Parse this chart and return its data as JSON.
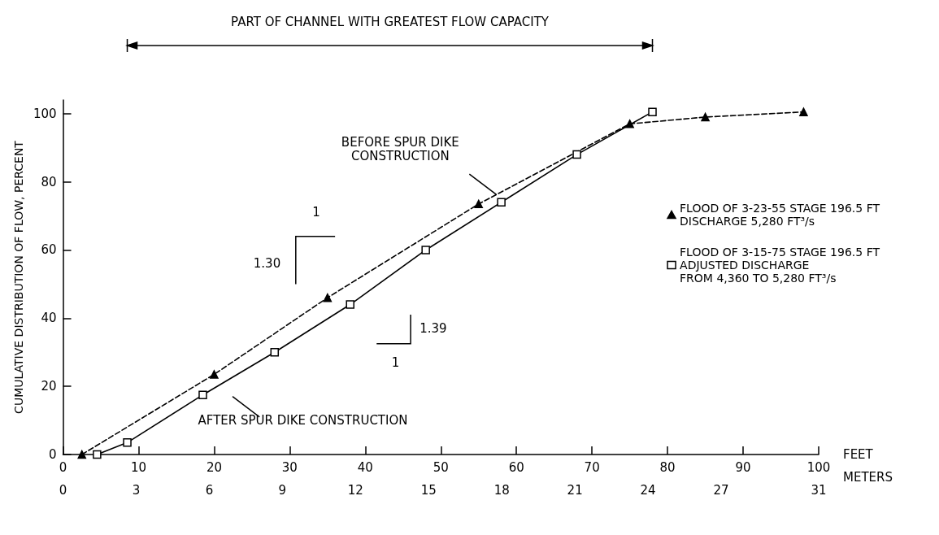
{
  "chart_data": {
    "type": "line",
    "xlabel": "FEET",
    "ylabel": "CUMULATIVE DISTRIBUTION OF FLOW, PERCENT",
    "x2label": "METERS",
    "xlim": [
      0,
      100
    ],
    "xticks": [
      0,
      10,
      20,
      30,
      40,
      50,
      60,
      70,
      80,
      90,
      100
    ],
    "x2lim": [
      0,
      31
    ],
    "x2ticks": [
      0,
      3,
      6,
      9,
      12,
      15,
      18,
      21,
      24,
      27,
      31
    ],
    "ylim": [
      0,
      104
    ],
    "yticks": [
      0,
      20,
      40,
      60,
      80,
      100
    ],
    "grid": false,
    "legend": "right",
    "series": [
      {
        "name": "FLOOD OF 3-23-55 STAGE 196.5 FT\nDISCHARGE 5,280 FT³/s",
        "color": "#000000",
        "marker": "triangle",
        "line_style": "dashed",
        "x": [
          2.5,
          20,
          35,
          55,
          75,
          85,
          98
        ],
        "values": [
          0,
          23.5,
          46,
          73.5,
          97,
          99,
          100.5
        ]
      },
      {
        "name": "FLOOD OF 3-15-75 STAGE 196.5 FT\nADJUSTED DISCHARGE\nFROM 4,360 TO 5,280 FT³/s",
        "color": "#000000",
        "marker": "square",
        "line_style": "solid",
        "x": [
          4.5,
          8.5,
          18.5,
          28,
          38,
          48,
          58,
          68,
          78
        ],
        "values": [
          0,
          3.5,
          17.5,
          30,
          44,
          60,
          74,
          88,
          100.5
        ]
      }
    ],
    "annotations": [
      "PART OF CHANNEL WITH GREATEST FLOW CAPACITY",
      {
        "text": "BEFORE SPUR DIKE\nCONSTRUCTION",
        "x": 57,
        "y": 77
      },
      "AFTER SPUR DIKE CONSTRUCTION",
      "1.30",
      "1",
      "1.39",
      "1"
    ]
  }
}
